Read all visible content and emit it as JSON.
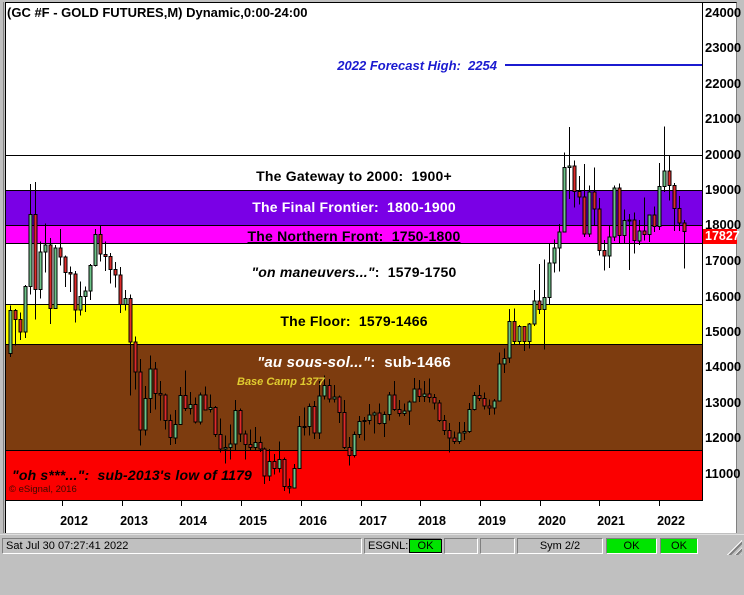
{
  "chart": {
    "title": "(GC #F - GOLD FUTURES,M) Dynamic,0:00-24:00",
    "forecast": {
      "text": "2022 Forecast High:  2254",
      "value": 2254,
      "color": "#1b1bd0"
    },
    "watermark": "© eSignal, 2016",
    "price_box": {
      "value": "17827",
      "bg": "#ff0000",
      "color": "#ffffff"
    },
    "zones": [
      {
        "name": "gateway-to-2000",
        "label_italic": "",
        "label_text": "The Gateway to 2000:  1900+",
        "from": 19000,
        "to": 20000,
        "bg": "#ffffff",
        "color": "#000000",
        "align": "center",
        "underline": false
      },
      {
        "name": "final-frontier",
        "label_italic": "",
        "label_text": "The Final Frontier:  1800-1900",
        "from": 18000,
        "to": 19000,
        "bg": "#7a00e6",
        "color": "#ffffff",
        "align": "center",
        "underline": false
      },
      {
        "name": "northern-front",
        "label_italic": "",
        "label_text": "The Northern Front:  1750-1800",
        "from": 17500,
        "to": 18000,
        "bg": "#ff00ff",
        "color": "#000000",
        "align": "center",
        "underline": true
      },
      {
        "name": "on-maneuvers",
        "label_italic": "\"on maneuvers...\"",
        "label_text": ":  1579-1750",
        "from": 15790,
        "to": 17500,
        "bg": "#ffffff",
        "color": "#000000",
        "align": "center",
        "underline": false
      },
      {
        "name": "the-floor",
        "label_italic": "",
        "label_text": "The Floor:  1579-1466",
        "from": 14660,
        "to": 15790,
        "bg": "#ffff00",
        "color": "#000000",
        "align": "center",
        "underline": false
      },
      {
        "name": "au-sous-sol",
        "label_italic": "\"au sous-sol...\"",
        "label_text": ":  sub-1466",
        "from": 11680,
        "to": 14660,
        "bg": "#7d3c0f",
        "color": "#ffffff",
        "align": "center",
        "underline": false,
        "big": true,
        "sub_label": {
          "text": "Base Camp 1377",
          "color": "#e0cc30"
        }
      },
      {
        "name": "oh-s",
        "label_italic": "\"oh s***...\":  sub-2013's low of 1179",
        "label_text": "",
        "from": 10268,
        "to": 11680,
        "bg": "#fb0000",
        "color": "#000000",
        "align": "left",
        "underline": false
      }
    ]
  },
  "axis": {
    "y_ticks": [
      "24000",
      "23000",
      "22000",
      "21000",
      "20000",
      "19000",
      "18000",
      "17000",
      "16000",
      "15000",
      "14000",
      "13000",
      "12000",
      "11000"
    ],
    "x_ticks": [
      "2012",
      "2013",
      "2014",
      "2015",
      "2016",
      "2017",
      "2018",
      "2019",
      "2020",
      "2021",
      "2022"
    ]
  },
  "status_bar": {
    "datetime": "Sat Jul 30 07:27:41 2022",
    "feed_label": "ESGNL:",
    "feed_status": "OK",
    "sym_label": "Sym 2/2",
    "ok1": "OK",
    "ok2": "OK"
  },
  "chart_data": {
    "type": "candlestick",
    "period": "monthly",
    "symbol": "GC #F GOLD FUTURES",
    "start_month": "2011-04",
    "end_month": "2022-07",
    "price_scale_note": "y axis shows price x10",
    "first_open": 1440,
    "open_equals_previous_close": true,
    "up_color": "#6cc388",
    "down_color": "#de2a2a",
    "y_range_axis_units": [
      10268,
      24000
    ],
    "annotations": {
      "forecast_high_2022": 2254,
      "current_price": 1782.7,
      "base_camp": 1377,
      "low_2013": 1179
    },
    "months_hlc": [
      [
        1575,
        1430,
        1560
      ],
      [
        1565,
        1462,
        1535
      ],
      [
        1555,
        1478,
        1500
      ],
      [
        1632,
        1483,
        1628
      ],
      [
        1917,
        1605,
        1831
      ],
      [
        1923,
        1535,
        1620
      ],
      [
        1755,
        1595,
        1725
      ],
      [
        1805,
        1667,
        1745
      ],
      [
        1765,
        1523,
        1566
      ],
      [
        1745,
        1565,
        1737
      ],
      [
        1790,
        1688,
        1711
      ],
      [
        1715,
        1627,
        1668
      ],
      [
        1685,
        1613,
        1664
      ],
      [
        1672,
        1527,
        1562
      ],
      [
        1642,
        1547,
        1600
      ],
      [
        1628,
        1556,
        1615
      ],
      [
        1692,
        1590,
        1687
      ],
      [
        1790,
        1685,
        1774
      ],
      [
        1798,
        1698,
        1719
      ],
      [
        1755,
        1672,
        1713
      ],
      [
        1723,
        1636,
        1676
      ],
      [
        1697,
        1626,
        1661
      ],
      [
        1683,
        1554,
        1578
      ],
      [
        1618,
        1560,
        1595
      ],
      [
        1605,
        1321,
        1472
      ],
      [
        1488,
        1338,
        1387
      ],
      [
        1424,
        1180,
        1224
      ],
      [
        1348,
        1208,
        1312
      ],
      [
        1434,
        1272,
        1396
      ],
      [
        1416,
        1282,
        1327
      ],
      [
        1362,
        1251,
        1323
      ],
      [
        1327,
        1226,
        1250
      ],
      [
        1268,
        1182,
        1202
      ],
      [
        1280,
        1184,
        1240
      ],
      [
        1345,
        1240,
        1321
      ],
      [
        1392,
        1277,
        1284
      ],
      [
        1331,
        1268,
        1296
      ],
      [
        1316,
        1242,
        1246
      ],
      [
        1330,
        1240,
        1322
      ],
      [
        1347,
        1281,
        1281
      ],
      [
        1324,
        1273,
        1287
      ],
      [
        1292,
        1204,
        1211
      ],
      [
        1256,
        1160,
        1171
      ],
      [
        1208,
        1130,
        1175
      ],
      [
        1239,
        1141,
        1184
      ],
      [
        1308,
        1168,
        1279
      ],
      [
        1285,
        1190,
        1213
      ],
      [
        1223,
        1141,
        1183
      ],
      [
        1225,
        1167,
        1174
      ],
      [
        1232,
        1166,
        1189
      ],
      [
        1206,
        1162,
        1171
      ],
      [
        1175,
        1072,
        1095
      ],
      [
        1170,
        1080,
        1135
      ],
      [
        1156,
        1098,
        1115
      ],
      [
        1192,
        1104,
        1141
      ],
      [
        1146,
        1052,
        1065
      ],
      [
        1088,
        1045,
        1060
      ],
      [
        1128,
        1061,
        1116
      ],
      [
        1264,
        1117,
        1234
      ],
      [
        1287,
        1208,
        1233
      ],
      [
        1299,
        1209,
        1290
      ],
      [
        1306,
        1199,
        1215
      ],
      [
        1362,
        1199,
        1320
      ],
      [
        1377,
        1310,
        1349
      ],
      [
        1367,
        1302,
        1311
      ],
      [
        1350,
        1302,
        1317
      ],
      [
        1321,
        1243,
        1273
      ],
      [
        1308,
        1170,
        1174
      ],
      [
        1204,
        1124,
        1152
      ],
      [
        1220,
        1146,
        1211
      ],
      [
        1264,
        1202,
        1248
      ],
      [
        1261,
        1194,
        1251
      ],
      [
        1297,
        1240,
        1266
      ],
      [
        1276,
        1214,
        1272
      ],
      [
        1298,
        1240,
        1242
      ],
      [
        1276,
        1204,
        1268
      ],
      [
        1331,
        1251,
        1322
      ],
      [
        1362,
        1277,
        1282
      ],
      [
        1308,
        1262,
        1271
      ],
      [
        1299,
        1263,
        1277
      ],
      [
        1307,
        1238,
        1303
      ],
      [
        1370,
        1303,
        1339
      ],
      [
        1365,
        1303,
        1318
      ],
      [
        1362,
        1303,
        1325
      ],
      [
        1369,
        1302,
        1315
      ],
      [
        1326,
        1281,
        1300
      ],
      [
        1309,
        1247,
        1251
      ],
      [
        1266,
        1210,
        1223
      ],
      [
        1244,
        1160,
        1201
      ],
      [
        1220,
        1184,
        1192
      ],
      [
        1246,
        1184,
        1215
      ],
      [
        1246,
        1196,
        1220
      ],
      [
        1300,
        1216,
        1281
      ],
      [
        1331,
        1279,
        1321
      ],
      [
        1350,
        1305,
        1313
      ],
      [
        1330,
        1281,
        1292
      ],
      [
        1310,
        1266,
        1286
      ],
      [
        1311,
        1267,
        1306
      ],
      [
        1442,
        1305,
        1410
      ],
      [
        1454,
        1385,
        1426
      ],
      [
        1565,
        1413,
        1530
      ],
      [
        1566,
        1465,
        1473
      ],
      [
        1520,
        1465,
        1515
      ],
      [
        1517,
        1446,
        1473
      ],
      [
        1525,
        1453,
        1523
      ],
      [
        1619,
        1517,
        1588
      ],
      [
        1691,
        1551,
        1564
      ],
      [
        1704,
        1451,
        1597
      ],
      [
        1748,
        1576,
        1694
      ],
      [
        1761,
        1668,
        1737
      ],
      [
        1804,
        1671,
        1781
      ],
      [
        2006,
        1784,
        1963
      ],
      [
        2078,
        1874,
        1968
      ],
      [
        1983,
        1851,
        1896
      ],
      [
        1939,
        1859,
        1880
      ],
      [
        1973,
        1767,
        1776
      ],
      [
        1912,
        1768,
        1895
      ],
      [
        1963,
        1802,
        1847
      ],
      [
        1878,
        1715,
        1729
      ],
      [
        1759,
        1673,
        1714
      ],
      [
        1800,
        1680,
        1768
      ],
      [
        1913,
        1756,
        1905
      ],
      [
        1919,
        1750,
        1772
      ],
      [
        1845,
        1750,
        1814
      ],
      [
        1832,
        1675,
        1816
      ],
      [
        1836,
        1721,
        1757
      ],
      [
        1815,
        1745,
        1784
      ],
      [
        1879,
        1758,
        1775
      ],
      [
        1830,
        1753,
        1829
      ],
      [
        1854,
        1781,
        1797
      ],
      [
        1976,
        1788,
        1910
      ],
      [
        2079,
        1895,
        1954
      ],
      [
        1998,
        1871,
        1912
      ],
      [
        1920,
        1785,
        1848
      ],
      [
        1883,
        1785,
        1807
      ],
      [
        1815,
        1679,
        1783
      ]
    ]
  }
}
